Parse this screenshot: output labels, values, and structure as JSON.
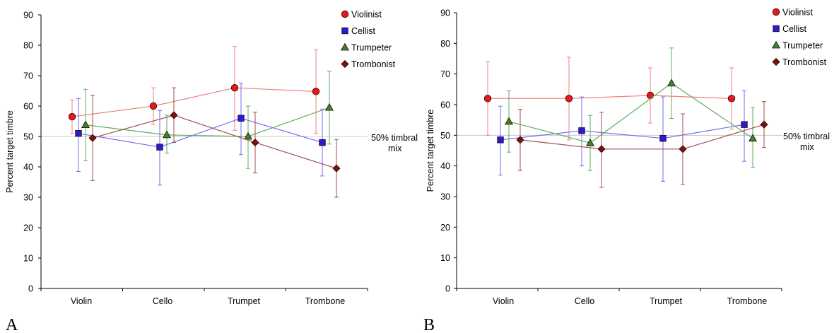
{
  "chart_data": [
    {
      "type": "line",
      "panel_label": "A",
      "categories": [
        "Violin",
        "Cello",
        "Trumpet",
        "Trombone"
      ],
      "ylabel": "Percent target timbre",
      "ylim": [
        0,
        90
      ],
      "yticks": [
        0,
        10,
        20,
        30,
        40,
        50,
        60,
        70,
        80,
        90
      ],
      "reference_line": {
        "value": 50,
        "label_line1": "50% timbral",
        "label_line2": "mix"
      },
      "legend_position": "top-right",
      "series": [
        {
          "name": "Violinist",
          "marker": "circle",
          "color": "#e31a1c",
          "line_color": "#f08080",
          "values": [
            56.5,
            60,
            66,
            64.8
          ],
          "upper": [
            62,
            66,
            79.6,
            78.5
          ],
          "lower": [
            51,
            54,
            52,
            51
          ]
        },
        {
          "name": "Cellist",
          "marker": "square",
          "color": "#1f1fd6",
          "line_color": "#6e6ef0",
          "values": [
            51,
            46.5,
            56,
            48
          ],
          "upper": [
            62.5,
            58.5,
            67.5,
            59
          ],
          "lower": [
            38.5,
            34,
            44,
            37
          ]
        },
        {
          "name": "Trumpeter",
          "marker": "triangle",
          "color": "#2e8b2e",
          "line_color": "#5fae5f",
          "values": [
            53.8,
            50.5,
            50,
            59.5
          ],
          "upper": [
            65.5,
            57,
            60,
            71.5
          ],
          "lower": [
            42,
            44.5,
            39.5,
            47.5
          ]
        },
        {
          "name": "Trombonist",
          "marker": "diamond",
          "color": "#7a1010",
          "line_color": "#a05050",
          "values": [
            49.5,
            57,
            48,
            39.5
          ],
          "upper": [
            63.5,
            66,
            58,
            49
          ],
          "lower": [
            35.5,
            48,
            38,
            30
          ]
        }
      ]
    },
    {
      "type": "line",
      "panel_label": "B",
      "categories": [
        "Violin",
        "Cello",
        "Trumpet",
        "Trombone"
      ],
      "ylabel": "Percent target timbre",
      "ylim": [
        0,
        90
      ],
      "yticks": [
        0,
        10,
        20,
        30,
        40,
        50,
        60,
        70,
        80,
        90
      ],
      "reference_line": {
        "value": 50,
        "label_line1": "50% timbral",
        "label_line2": "mix"
      },
      "legend_position": "top-right",
      "series": [
        {
          "name": "Violinist",
          "marker": "circle",
          "color": "#e31a1c",
          "line_color": "#f08080",
          "values": [
            62,
            62,
            63,
            62
          ],
          "upper": [
            74,
            75.5,
            72,
            72
          ],
          "lower": [
            50,
            48.5,
            54,
            52
          ]
        },
        {
          "name": "Cellist",
          "marker": "square",
          "color": "#1f1fd6",
          "line_color": "#6e6ef0",
          "values": [
            48.5,
            51.5,
            49,
            53.5
          ],
          "upper": [
            59.5,
            62.5,
            62.5,
            64.5
          ],
          "lower": [
            37,
            40,
            35,
            41.5
          ]
        },
        {
          "name": "Trumpeter",
          "marker": "triangle",
          "color": "#2e8b2e",
          "line_color": "#5fae5f",
          "values": [
            54.5,
            47.5,
            67,
            49
          ],
          "upper": [
            64.5,
            56.5,
            78.5,
            59
          ],
          "lower": [
            44.5,
            38.5,
            55.5,
            39.5
          ]
        },
        {
          "name": "Trombonist",
          "marker": "diamond",
          "color": "#7a1010",
          "line_color": "#a05050",
          "values": [
            48.5,
            45.5,
            45.5,
            53.5
          ],
          "upper": [
            58.5,
            57.5,
            57,
            61
          ],
          "lower": [
            38.5,
            33,
            34,
            46
          ]
        }
      ]
    }
  ]
}
